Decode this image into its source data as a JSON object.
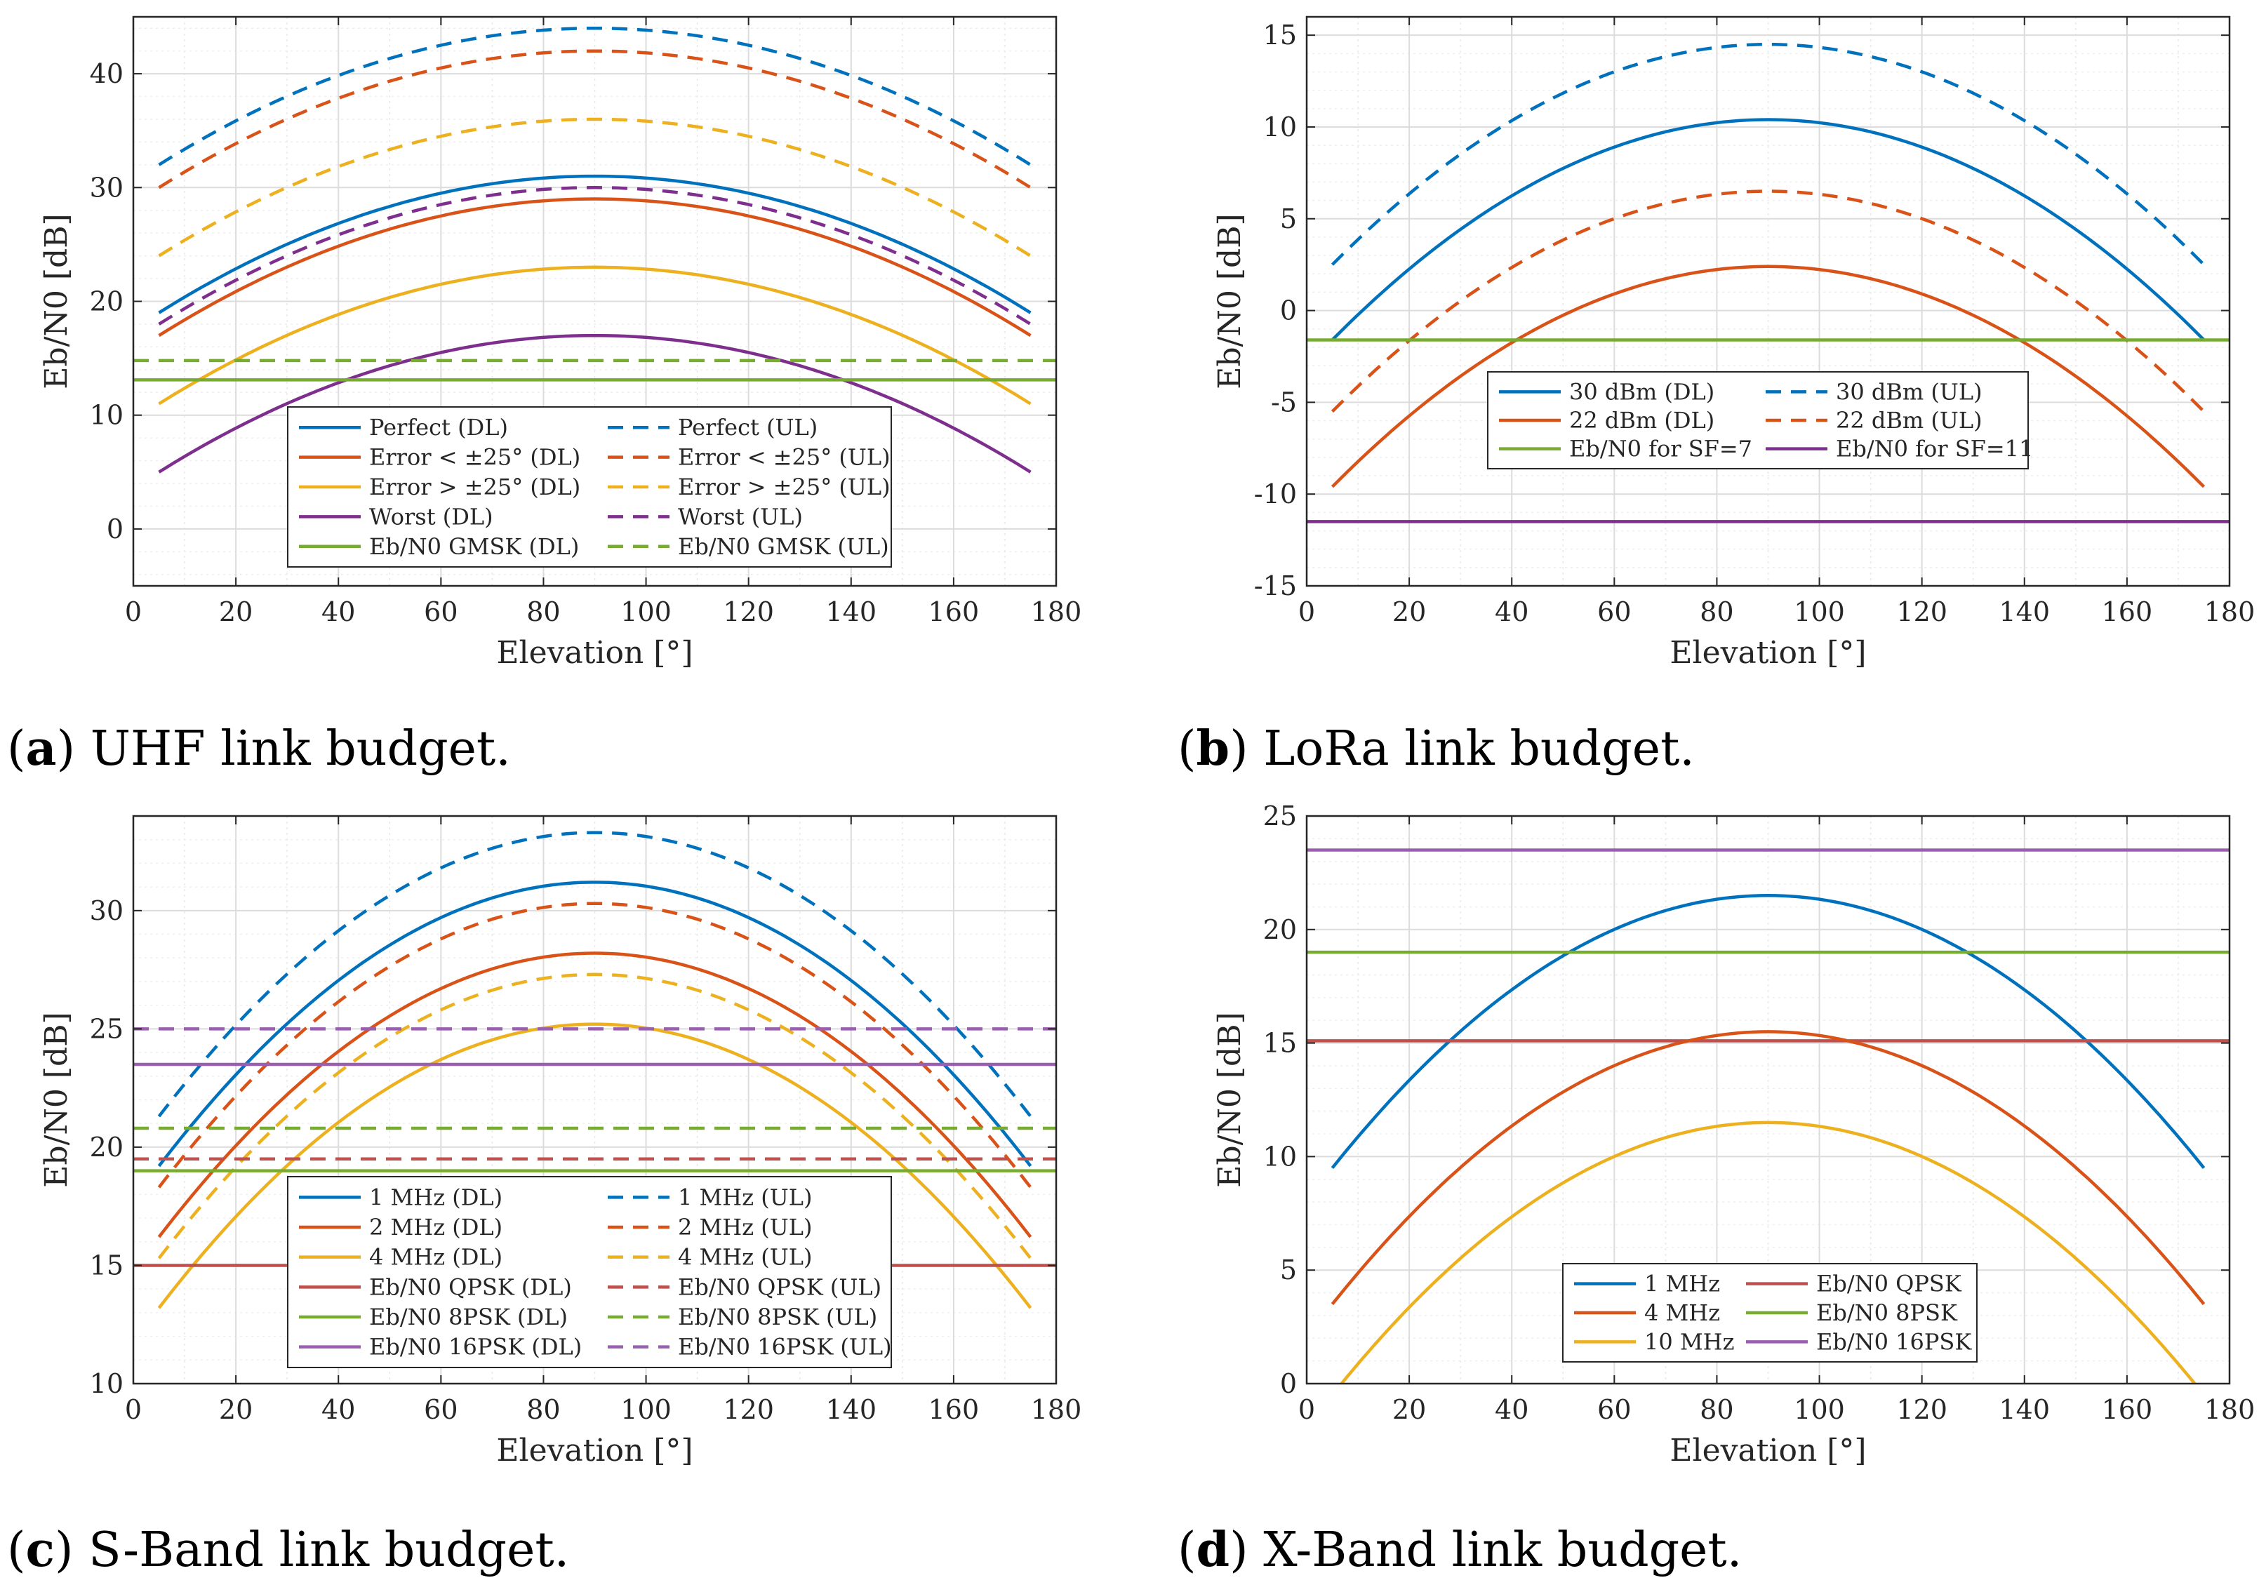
{
  "colors": {
    "blue": "#0072BD",
    "red": "#D95319",
    "yellow": "#EDB120",
    "purple": "#7E2F8E",
    "green": "#77AC30",
    "purple_light": "#9A5FB0",
    "red_dark": "#C0504D"
  },
  "chart_data": [
    {
      "type": "line",
      "panel": "a",
      "caption_letter": "a",
      "caption_text": " UHF link budget.",
      "xlabel": "Elevation [°]",
      "ylabel": "Eb/N0 [dB]",
      "xlim": [
        0,
        180
      ],
      "ylim": [
        -5,
        45
      ],
      "xticks": [
        0,
        20,
        40,
        60,
        80,
        100,
        120,
        140,
        160,
        180
      ],
      "yticks": [
        0,
        10,
        20,
        30,
        40
      ],
      "ytick_labels": [
        "0",
        "10",
        "20",
        "30",
        "40"
      ],
      "grid": true,
      "legend_columns": 2,
      "legend_position": "bottom-center",
      "series": [
        {
          "name": "Perfect (DL)",
          "kind": "curve",
          "x_range": [
            5,
            175
          ],
          "edge": 19,
          "peak": 31,
          "color": "#0072BD",
          "dash": false
        },
        {
          "name": "Perfect (UL)",
          "kind": "curve",
          "x_range": [
            5,
            175
          ],
          "edge": 32,
          "peak": 44,
          "color": "#0072BD",
          "dash": true
        },
        {
          "name": "Error < ±25° (DL)",
          "kind": "curve",
          "x_range": [
            5,
            175
          ],
          "edge": 17,
          "peak": 29,
          "color": "#D95319",
          "dash": false
        },
        {
          "name": "Error < ±25° (UL)",
          "kind": "curve",
          "x_range": [
            5,
            175
          ],
          "edge": 30,
          "peak": 42,
          "color": "#D95319",
          "dash": true
        },
        {
          "name": "Error > ±25° (DL)",
          "kind": "curve",
          "x_range": [
            5,
            175
          ],
          "edge": 11,
          "peak": 23,
          "color": "#EDB120",
          "dash": false
        },
        {
          "name": "Error > ±25° (UL)",
          "kind": "curve",
          "x_range": [
            5,
            175
          ],
          "edge": 24,
          "peak": 36,
          "color": "#EDB120",
          "dash": true
        },
        {
          "name": "Worst (DL)",
          "kind": "curve",
          "x_range": [
            5,
            175
          ],
          "edge": 5,
          "peak": 17,
          "color": "#7E2F8E",
          "dash": false
        },
        {
          "name": "Worst (UL)",
          "kind": "curve",
          "x_range": [
            5,
            175
          ],
          "edge": 18,
          "peak": 30,
          "color": "#7E2F8E",
          "dash": true
        },
        {
          "name": "Eb/N0 GMSK (DL)",
          "kind": "hline",
          "x_range": [
            0,
            180
          ],
          "value": 13.1,
          "color": "#77AC30",
          "dash": false
        },
        {
          "name": "Eb/N0 GMSK (UL)",
          "kind": "hline",
          "x_range": [
            0,
            180
          ],
          "value": 14.8,
          "color": "#77AC30",
          "dash": true
        }
      ]
    },
    {
      "type": "line",
      "panel": "b",
      "caption_letter": "b",
      "caption_text": " LoRa link budget.",
      "xlabel": "Elevation [°]",
      "ylabel": "Eb/N0 [dB]",
      "xlim": [
        0,
        180
      ],
      "ylim": [
        -15,
        16
      ],
      "xticks": [
        0,
        20,
        40,
        60,
        80,
        100,
        120,
        140,
        160,
        180
      ],
      "yticks": [
        -15,
        -10,
        -5,
        0,
        5,
        10,
        15
      ],
      "ytick_labels": [
        "-15",
        "-10",
        "-5",
        "0",
        "5",
        "10",
        "15"
      ],
      "grid": true,
      "legend_columns": 2,
      "legend_position": "center",
      "series": [
        {
          "name": "30 dBm (DL)",
          "kind": "curve",
          "x_range": [
            5,
            175
          ],
          "edge": -1.6,
          "peak": 10.4,
          "color": "#0072BD",
          "dash": false
        },
        {
          "name": "30 dBm (UL)",
          "kind": "curve",
          "x_range": [
            5,
            175
          ],
          "edge": 2.5,
          "peak": 14.5,
          "color": "#0072BD",
          "dash": true
        },
        {
          "name": "22 dBm (DL)",
          "kind": "curve",
          "x_range": [
            5,
            175
          ],
          "edge": -9.6,
          "peak": 2.4,
          "color": "#D95319",
          "dash": false
        },
        {
          "name": "22 dBm (UL)",
          "kind": "curve",
          "x_range": [
            5,
            175
          ],
          "edge": -5.5,
          "peak": 6.5,
          "color": "#D95319",
          "dash": true
        },
        {
          "name": "Eb/N0 for SF=7",
          "kind": "hline",
          "x_range": [
            0,
            180
          ],
          "value": -1.6,
          "color": "#77AC30",
          "dash": false
        },
        {
          "name": "Eb/N0 for SF=11",
          "kind": "hline",
          "x_range": [
            0,
            180
          ],
          "value": -11.5,
          "color": "#7E2F8E",
          "dash": false
        }
      ]
    },
    {
      "type": "line",
      "panel": "c",
      "caption_letter": "c",
      "caption_text": " S-Band link budget.",
      "xlabel": "Elevation [°]",
      "ylabel": "Eb/N0 [dB]",
      "xlim": [
        0,
        180
      ],
      "ylim": [
        10,
        34
      ],
      "xticks": [
        0,
        20,
        40,
        60,
        80,
        100,
        120,
        140,
        160,
        180
      ],
      "yticks": [
        10,
        15,
        20,
        25,
        30
      ],
      "ytick_labels": [
        "10",
        "15",
        "20",
        "25",
        "30"
      ],
      "grid": true,
      "legend_columns": 2,
      "legend_position": "bottom-center",
      "series": [
        {
          "name": "1 MHz (DL)",
          "kind": "curve",
          "x_range": [
            5,
            175
          ],
          "edge": 19.2,
          "peak": 31.2,
          "color": "#0072BD",
          "dash": false
        },
        {
          "name": "1 MHz (UL)",
          "kind": "curve",
          "x_range": [
            5,
            175
          ],
          "edge": 21.3,
          "peak": 33.3,
          "color": "#0072BD",
          "dash": true
        },
        {
          "name": "2 MHz (DL)",
          "kind": "curve",
          "x_range": [
            5,
            175
          ],
          "edge": 16.2,
          "peak": 28.2,
          "color": "#D95319",
          "dash": false
        },
        {
          "name": "2 MHz (UL)",
          "kind": "curve",
          "x_range": [
            5,
            175
          ],
          "edge": 18.3,
          "peak": 30.3,
          "color": "#D95319",
          "dash": true
        },
        {
          "name": "4 MHz (DL)",
          "kind": "curve",
          "x_range": [
            5,
            175
          ],
          "edge": 13.2,
          "peak": 25.2,
          "color": "#EDB120",
          "dash": false
        },
        {
          "name": "4 MHz (UL)",
          "kind": "curve",
          "x_range": [
            5,
            175
          ],
          "edge": 15.3,
          "peak": 27.3,
          "color": "#EDB120",
          "dash": true
        },
        {
          "name": "Eb/N0 QPSK (DL)",
          "kind": "hline",
          "x_range": [
            0,
            180
          ],
          "value": 15.0,
          "color": "#C0504D",
          "dash": false
        },
        {
          "name": "Eb/N0 QPSK (UL)",
          "kind": "hline",
          "x_range": [
            0,
            180
          ],
          "value": 19.5,
          "color": "#C0504D",
          "dash": true
        },
        {
          "name": "Eb/N0 8PSK (DL)",
          "kind": "hline",
          "x_range": [
            0,
            180
          ],
          "value": 19.0,
          "color": "#77AC30",
          "dash": false
        },
        {
          "name": "Eb/N0 8PSK (UL)",
          "kind": "hline",
          "x_range": [
            0,
            180
          ],
          "value": 20.8,
          "color": "#77AC30",
          "dash": true
        },
        {
          "name": "Eb/N0 16PSK (DL)",
          "kind": "hline",
          "x_range": [
            0,
            180
          ],
          "value": 23.5,
          "color": "#9A5FB0",
          "dash": false
        },
        {
          "name": "Eb/N0 16PSK (UL)",
          "kind": "hline",
          "x_range": [
            0,
            180
          ],
          "value": 25.0,
          "color": "#9A5FB0",
          "dash": true
        }
      ]
    },
    {
      "type": "line",
      "panel": "d",
      "caption_letter": "d",
      "caption_text": " X-Band link budget.",
      "xlabel": "Elevation [°]",
      "ylabel": "Eb/N0 [dB]",
      "xlim": [
        0,
        180
      ],
      "ylim": [
        0,
        25
      ],
      "xticks": [
        0,
        20,
        40,
        60,
        80,
        100,
        120,
        140,
        160,
        180
      ],
      "yticks": [
        0,
        5,
        10,
        15,
        20,
        25
      ],
      "ytick_labels": [
        "0",
        "5",
        "10",
        "15",
        "20",
        "25"
      ],
      "grid": true,
      "legend_columns": 2,
      "legend_position": "bottom-center",
      "series": [
        {
          "name": "1 MHz",
          "kind": "curve",
          "x_range": [
            5,
            175
          ],
          "edge": 9.5,
          "peak": 21.5,
          "color": "#0072BD",
          "dash": false
        },
        {
          "name": "Eb/N0 QPSK",
          "kind": "hline",
          "x_range": [
            0,
            180
          ],
          "value": 15.1,
          "color": "#C0504D",
          "dash": false
        },
        {
          "name": "4 MHz",
          "kind": "curve",
          "x_range": [
            5,
            175
          ],
          "edge": 3.5,
          "peak": 15.5,
          "color": "#D95319",
          "dash": false
        },
        {
          "name": "Eb/N0 8PSK",
          "kind": "hline",
          "x_range": [
            0,
            180
          ],
          "value": 19.0,
          "color": "#77AC30",
          "dash": false
        },
        {
          "name": "10 MHz",
          "kind": "curve",
          "x_range": [
            5,
            175
          ],
          "edge": -0.5,
          "peak": 11.5,
          "color": "#EDB120",
          "dash": false
        },
        {
          "name": "Eb/N0 16PSK",
          "kind": "hline",
          "x_range": [
            0,
            180
          ],
          "value": 23.5,
          "color": "#9A5FB0",
          "dash": false
        }
      ]
    }
  ]
}
